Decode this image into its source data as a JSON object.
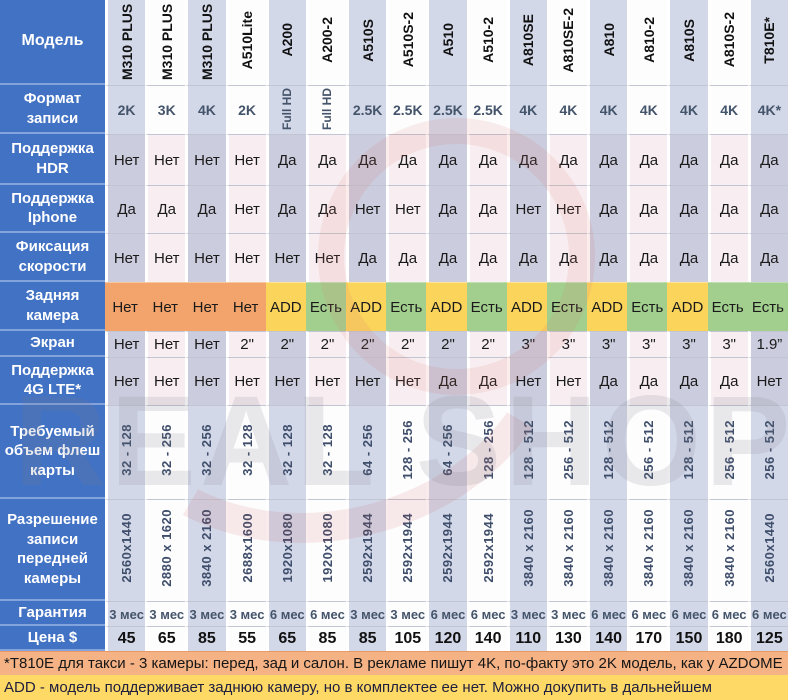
{
  "header": {
    "model_label": "Модель"
  },
  "chart_data": {
    "type": "table",
    "columns": [
      "M310 PLUS 2K",
      "M310 PLUS 3K",
      "M310 PLUS 4K",
      "A510Lite",
      "A200",
      "A200-2",
      "A510S",
      "A510S-2",
      "A510",
      "A510-2",
      "A810SE",
      "A810SE-2",
      "A810",
      "A810-2",
      "A810S",
      "A810S-2",
      "T810E*"
    ],
    "rows": [
      {
        "id": "format",
        "label": "Формат записи",
        "values": [
          "2K",
          "3K",
          "4K",
          "2K",
          "Full HD",
          "Full HD",
          "2.5K",
          "2.5K",
          "2.5K",
          "2.5K",
          "4K",
          "4K",
          "4K",
          "4K",
          "4K",
          "4K",
          "4K*"
        ]
      },
      {
        "id": "hdr",
        "label": "Поддержка HDR",
        "values": [
          "Нет",
          "Нет",
          "Нет",
          "Нет",
          "Да",
          "Да",
          "Да",
          "Да",
          "Да",
          "Да",
          "Да",
          "Да",
          "Да",
          "Да",
          "Да",
          "Да",
          "Да"
        ]
      },
      {
        "id": "iphone",
        "label": "Поддержка Iphone",
        "values": [
          "Да",
          "Да",
          "Да",
          "Нет",
          "Да",
          "Да",
          "Нет",
          "Нет",
          "Да",
          "Да",
          "Нет",
          "Нет",
          "Да",
          "Да",
          "Да",
          "Да",
          "Да"
        ]
      },
      {
        "id": "speed",
        "label": "Фиксация скорости",
        "values": [
          "Нет",
          "Нет",
          "Нет",
          "Нет",
          "Нет",
          "Нет",
          "Да",
          "Да",
          "Да",
          "Да",
          "Да",
          "Да",
          "Да",
          "Да",
          "Да",
          "Да",
          "Да"
        ]
      },
      {
        "id": "rear",
        "label": "Задняя камера",
        "values": [
          "Нет",
          "Нет",
          "Нет",
          "Нет",
          "ADD",
          "Есть",
          "ADD",
          "Есть",
          "ADD",
          "Есть",
          "ADD",
          "Есть",
          "ADD",
          "Есть",
          "ADD",
          "Есть",
          "Есть"
        ]
      },
      {
        "id": "screen",
        "label": "Экран",
        "values": [
          "Нет",
          "Нет",
          "Нет",
          "2\"",
          "2\"",
          "2\"",
          "2\"",
          "2\"",
          "2\"",
          "2\"",
          "3\"",
          "3\"",
          "3\"",
          "3\"",
          "3\"",
          "3\"",
          "1.9”"
        ]
      },
      {
        "id": "lte",
        "label": "Поддержка 4G LTE*",
        "values": [
          "Нет",
          "Нет",
          "Нет",
          "Нет",
          "Нет",
          "Нет",
          "Нет",
          "Нет",
          "Да",
          "Да",
          "Нет",
          "Нет",
          "Да",
          "Да",
          "Да",
          "Да",
          "Нет"
        ]
      },
      {
        "id": "flash",
        "label": "Требуемый объем флеш карты",
        "values": [
          "32 - 128",
          "32 - 256",
          "32 - 256",
          "32 - 128",
          "32 - 128",
          "32 - 128",
          "64 - 256",
          "128 - 256",
          "64 - 256",
          "128 - 256",
          "128 - 512",
          "256 - 512",
          "128 - 512",
          "256 - 512",
          "128 - 512",
          "256 - 512",
          "256 - 512"
        ]
      },
      {
        "id": "resolution",
        "label": "Разрешение записи передней камеры",
        "values": [
          "2560x1440",
          "2880 x 1620",
          "3840 x 2160",
          "2688x1600",
          "1920x1080",
          "1920x1080",
          "2592x1944",
          "2592x1944",
          "2592x1944",
          "2592x1944",
          "3840 x 2160",
          "3840 x 2160",
          "3840 x 2160",
          "3840 x 2160",
          "3840 x 2160",
          "3840 x 2160",
          "2560x1440"
        ]
      },
      {
        "id": "warranty",
        "label": "Гарантия",
        "values": [
          "3 мес",
          "3 мес",
          "3 мес",
          "3 мес",
          "6 мес",
          "6 мес",
          "3 мес",
          "3 мес",
          "6 мес",
          "6 мес",
          "3 мес",
          "3 мес",
          "6 мес",
          "6 мес",
          "6 мес",
          "6 мес",
          "6 мес"
        ]
      },
      {
        "id": "price",
        "label": "Цена $",
        "values": [
          "45",
          "65",
          "85",
          "55",
          "65",
          "85",
          "85",
          "105",
          "120",
          "140",
          "110",
          "130",
          "140",
          "170",
          "150",
          "180",
          "125"
        ]
      }
    ]
  },
  "watermark": "REAL SHOP",
  "footer": {
    "line1": "*T810E для такси - 3 камеры: перед, зад и салон. В рекламе пишут 4K, по-факту это 2K модель, как у AZDOME",
    "line2": "ADD - модель поддерживает заднюю камеру, но в  комплектее ее нет. Можно докупить в дальнейшем"
  },
  "colors": {
    "header_blue": "#4272c4",
    "stripe_lavender": "#d3d8e9",
    "stripe_warm": "#f8eef1",
    "rear_no_orange": "#f2a46c",
    "rear_add_yellow": "#fbd45c",
    "rear_yes_green": "#a2cf8e",
    "footer_orange": "#f5b284",
    "footer_yellow": "#ffd966"
  }
}
